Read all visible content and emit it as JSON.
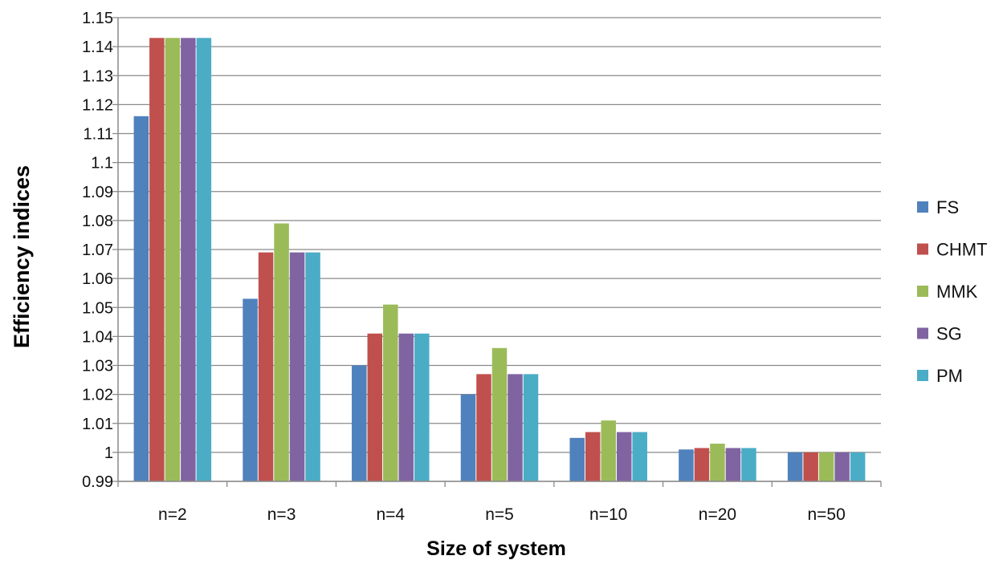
{
  "chart_data": {
    "type": "bar",
    "title": "",
    "xlabel": "Size of system",
    "ylabel": "Efficiency  indices",
    "ylim": [
      0.99,
      1.15
    ],
    "yticks": [
      0.99,
      1,
      1.01,
      1.02,
      1.03,
      1.04,
      1.05,
      1.06,
      1.07,
      1.08,
      1.09,
      1.1,
      1.11,
      1.12,
      1.13,
      1.14,
      1.15
    ],
    "ytick_labels": [
      "0.99",
      "1",
      "1.01",
      "1.02",
      "1.03",
      "1.04",
      "1.05",
      "1.06",
      "1.07",
      "1.08",
      "1.09",
      "1.1",
      "1.11",
      "1.12",
      "1.13",
      "1.14",
      "1.15"
    ],
    "grid": true,
    "legend_position": "right",
    "categories": [
      "n=2",
      "n=3",
      "n=4",
      "n=5",
      "n=10",
      "n=20",
      "n=50"
    ],
    "series": [
      {
        "name": "FS",
        "color": "#4F81BD",
        "values": [
          1.116,
          1.053,
          1.03,
          1.02,
          1.005,
          1.001,
          1.0
        ]
      },
      {
        "name": "CHMT",
        "color": "#C0504D",
        "values": [
          1.143,
          1.069,
          1.041,
          1.027,
          1.007,
          1.0015,
          1.0
        ]
      },
      {
        "name": "MMK",
        "color": "#9BBB59",
        "values": [
          1.143,
          1.079,
          1.051,
          1.036,
          1.011,
          1.003,
          1.0
        ]
      },
      {
        "name": "SG",
        "color": "#8064A2",
        "values": [
          1.143,
          1.069,
          1.041,
          1.027,
          1.007,
          1.0015,
          1.0
        ]
      },
      {
        "name": "PM",
        "color": "#4BACC6",
        "values": [
          1.143,
          1.069,
          1.041,
          1.027,
          1.007,
          1.0015,
          1.0
        ]
      }
    ]
  }
}
